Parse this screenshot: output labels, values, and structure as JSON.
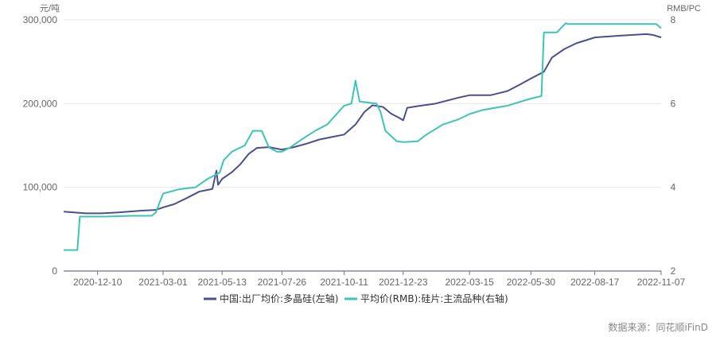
{
  "chart_data": {
    "type": "line",
    "y_left_unit": "元/吨",
    "y_right_unit": "RMB/PC",
    "y_left_ticks": [
      "0",
      "100,000",
      "200,000",
      "300,000"
    ],
    "y_left_range": [
      0,
      300000
    ],
    "y_right_ticks": [
      "2",
      "4",
      "6",
      "8"
    ],
    "y_right_range": [
      2,
      8
    ],
    "x_tick_labels": [
      "2020-12-10",
      "2021-03-01",
      "2021-05-13",
      "2021-07-26",
      "2021-10-11",
      "2021-12-23",
      "2022-03-15",
      "2022-05-30",
      "2022-08-17",
      "2022-11-07"
    ],
    "x_range": [
      "2020-10-29",
      "2022-11-07"
    ],
    "grid": "horizontal",
    "legend_position": "bottom",
    "series": [
      {
        "name": "中国:出厂均价:多晶硅(左轴)",
        "axis": "left",
        "color": "#4A4F8E",
        "points": [
          [
            "2020-10-29",
            71000
          ],
          [
            "2020-11-25",
            69000
          ],
          [
            "2020-12-15",
            69000
          ],
          [
            "2021-01-05",
            70000
          ],
          [
            "2021-02-01",
            72000
          ],
          [
            "2021-02-20",
            73000
          ],
          [
            "2021-03-01",
            76000
          ],
          [
            "2021-03-15",
            80000
          ],
          [
            "2021-04-01",
            88000
          ],
          [
            "2021-04-15",
            95000
          ],
          [
            "2021-05-01",
            98000
          ],
          [
            "2021-05-06",
            120000
          ],
          [
            "2021-05-08",
            103000
          ],
          [
            "2021-05-13",
            110000
          ],
          [
            "2021-05-25",
            118000
          ],
          [
            "2021-06-05",
            128000
          ],
          [
            "2021-06-15",
            140000
          ],
          [
            "2021-06-25",
            147000
          ],
          [
            "2021-07-10",
            148000
          ],
          [
            "2021-07-26",
            145000
          ],
          [
            "2021-08-10",
            148000
          ],
          [
            "2021-08-25",
            152000
          ],
          [
            "2021-09-10",
            157000
          ],
          [
            "2021-09-25",
            160000
          ],
          [
            "2021-10-11",
            163000
          ],
          [
            "2021-10-25",
            175000
          ],
          [
            "2021-11-05",
            190000
          ],
          [
            "2021-11-15",
            198000
          ],
          [
            "2021-11-28",
            196000
          ],
          [
            "2021-12-08",
            188000
          ],
          [
            "2021-12-18",
            183000
          ],
          [
            "2021-12-23",
            180000
          ],
          [
            "2021-12-28",
            195000
          ],
          [
            "2022-01-10",
            197000
          ],
          [
            "2022-02-01",
            200000
          ],
          [
            "2022-03-01",
            207000
          ],
          [
            "2022-03-15",
            210000
          ],
          [
            "2022-04-10",
            210000
          ],
          [
            "2022-05-01",
            215000
          ],
          [
            "2022-05-15",
            222000
          ],
          [
            "2022-05-30",
            230000
          ],
          [
            "2022-06-15",
            238000
          ],
          [
            "2022-06-25",
            255000
          ],
          [
            "2022-07-10",
            265000
          ],
          [
            "2022-07-25",
            272000
          ],
          [
            "2022-08-17",
            279000
          ],
          [
            "2022-09-15",
            281000
          ],
          [
            "2022-10-20",
            283000
          ],
          [
            "2022-10-28",
            282000
          ],
          [
            "2022-11-07",
            279000
          ]
        ]
      },
      {
        "name": "平均价(RMB):硅片:主流品种(右轴)",
        "axis": "right",
        "color": "#3CC4B6",
        "points": [
          [
            "2020-10-29",
            2.5
          ],
          [
            "2020-11-15",
            2.5
          ],
          [
            "2020-11-18",
            3.3
          ],
          [
            "2020-12-20",
            3.3
          ],
          [
            "2021-01-20",
            3.32
          ],
          [
            "2021-02-15",
            3.32
          ],
          [
            "2021-02-20",
            3.4
          ],
          [
            "2021-03-01",
            3.85
          ],
          [
            "2021-03-20",
            3.95
          ],
          [
            "2021-04-10",
            4.0
          ],
          [
            "2021-04-25",
            4.2
          ],
          [
            "2021-05-10",
            4.35
          ],
          [
            "2021-05-15",
            4.65
          ],
          [
            "2021-05-25",
            4.85
          ],
          [
            "2021-06-10",
            5.0
          ],
          [
            "2021-06-20",
            5.35
          ],
          [
            "2021-07-01",
            5.35
          ],
          [
            "2021-07-10",
            4.95
          ],
          [
            "2021-07-20",
            4.85
          ],
          [
            "2021-07-26",
            4.85
          ],
          [
            "2021-08-05",
            4.95
          ],
          [
            "2021-08-20",
            5.15
          ],
          [
            "2021-09-05",
            5.35
          ],
          [
            "2021-09-20",
            5.5
          ],
          [
            "2021-10-11",
            5.95
          ],
          [
            "2021-10-20",
            6.0
          ],
          [
            "2021-10-25",
            6.55
          ],
          [
            "2021-10-30",
            6.05
          ],
          [
            "2021-11-20",
            6.0
          ],
          [
            "2021-11-25",
            5.8
          ],
          [
            "2021-12-01",
            5.35
          ],
          [
            "2021-12-15",
            5.1
          ],
          [
            "2021-12-23",
            5.08
          ],
          [
            "2022-01-10",
            5.1
          ],
          [
            "2022-01-20",
            5.25
          ],
          [
            "2022-02-10",
            5.5
          ],
          [
            "2022-03-01",
            5.62
          ],
          [
            "2022-03-15",
            5.75
          ],
          [
            "2022-04-01",
            5.85
          ],
          [
            "2022-05-01",
            5.95
          ],
          [
            "2022-05-30",
            6.12
          ],
          [
            "2022-06-12",
            6.18
          ],
          [
            "2022-06-15",
            7.7
          ],
          [
            "2022-07-01",
            7.7
          ],
          [
            "2022-07-12",
            7.92
          ],
          [
            "2022-07-15",
            7.9
          ],
          [
            "2022-08-17",
            7.9
          ],
          [
            "2022-11-01",
            7.9
          ],
          [
            "2022-11-07",
            7.8
          ]
        ]
      }
    ],
    "source": "数据来源：同花顺iFinD"
  }
}
